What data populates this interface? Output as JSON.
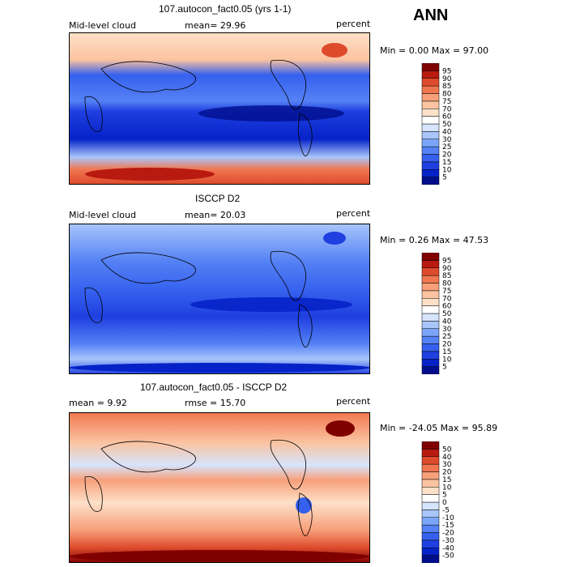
{
  "season": "ANN",
  "panels": [
    {
      "title": "107.autocon_fact0.05 (yrs 1-1)",
      "left_label": "Mid-level cloud",
      "mean_text": "mean=  29.96",
      "units": "percent",
      "minmax": "Min =    0.00 Max =  97.00"
    },
    {
      "title": "ISCCP D2",
      "left_label": "Mid-level cloud",
      "mean_text": "mean=  20.03",
      "units": "percent",
      "minmax": "Min =   0.26 Max =  47.53"
    },
    {
      "title": "107.autocon_fact0.05 - ISCCP D2",
      "left_label": "mean =    9.92",
      "mean_text": "rmse =  15.70",
      "units": "percent",
      "minmax": "Min = -24.05 Max =  95.89"
    }
  ],
  "chart_data": [
    {
      "type": "heatmap",
      "title": "107.autocon_fact0.05 (yrs 1-1)",
      "variable": "Mid-level cloud",
      "units": "percent",
      "mean": 29.96,
      "min": 0.0,
      "max": 97.0,
      "colorbar_levels": [
        5,
        10,
        15,
        20,
        25,
        30,
        40,
        50,
        60,
        70,
        75,
        80,
        85,
        90,
        95
      ],
      "colorbar_colors": [
        "#000e8c",
        "#0522c8",
        "#1f3fe0",
        "#3560ee",
        "#5582f5",
        "#7ba5f8",
        "#a9c6fb",
        "#d6e4fd",
        "#ffffff",
        "#fde0c8",
        "#fbc3a0",
        "#f7a07a",
        "#f07650",
        "#de4a2c",
        "#b81a10",
        "#800000"
      ]
    },
    {
      "type": "heatmap",
      "title": "ISCCP D2",
      "variable": "Mid-level cloud",
      "units": "percent",
      "mean": 20.03,
      "min": 0.26,
      "max": 47.53,
      "colorbar_levels": [
        5,
        10,
        15,
        20,
        25,
        30,
        40,
        50,
        60,
        70,
        75,
        80,
        85,
        90,
        95
      ],
      "colorbar_colors": [
        "#000e8c",
        "#0522c8",
        "#1f3fe0",
        "#3560ee",
        "#5582f5",
        "#7ba5f8",
        "#a9c6fb",
        "#d6e4fd",
        "#ffffff",
        "#fde0c8",
        "#fbc3a0",
        "#f7a07a",
        "#f07650",
        "#de4a2c",
        "#b81a10",
        "#800000"
      ]
    },
    {
      "type": "heatmap",
      "title": "107.autocon_fact0.05 - ISCCP D2",
      "units": "percent",
      "mean": 9.92,
      "rmse": 15.7,
      "min": -24.05,
      "max": 95.89,
      "colorbar_levels": [
        -50,
        -40,
        -30,
        -20,
        -15,
        -10,
        -5,
        0,
        5,
        10,
        15,
        20,
        30,
        40,
        50
      ],
      "colorbar_colors": [
        "#000e8c",
        "#0522c8",
        "#1f3fe0",
        "#3560ee",
        "#5582f5",
        "#7ba5f8",
        "#a9c6fb",
        "#d6e4fd",
        "#ffffff",
        "#fde0c8",
        "#fbc3a0",
        "#f7a07a",
        "#f07650",
        "#de4a2c",
        "#b81a10",
        "#800000"
      ]
    }
  ]
}
